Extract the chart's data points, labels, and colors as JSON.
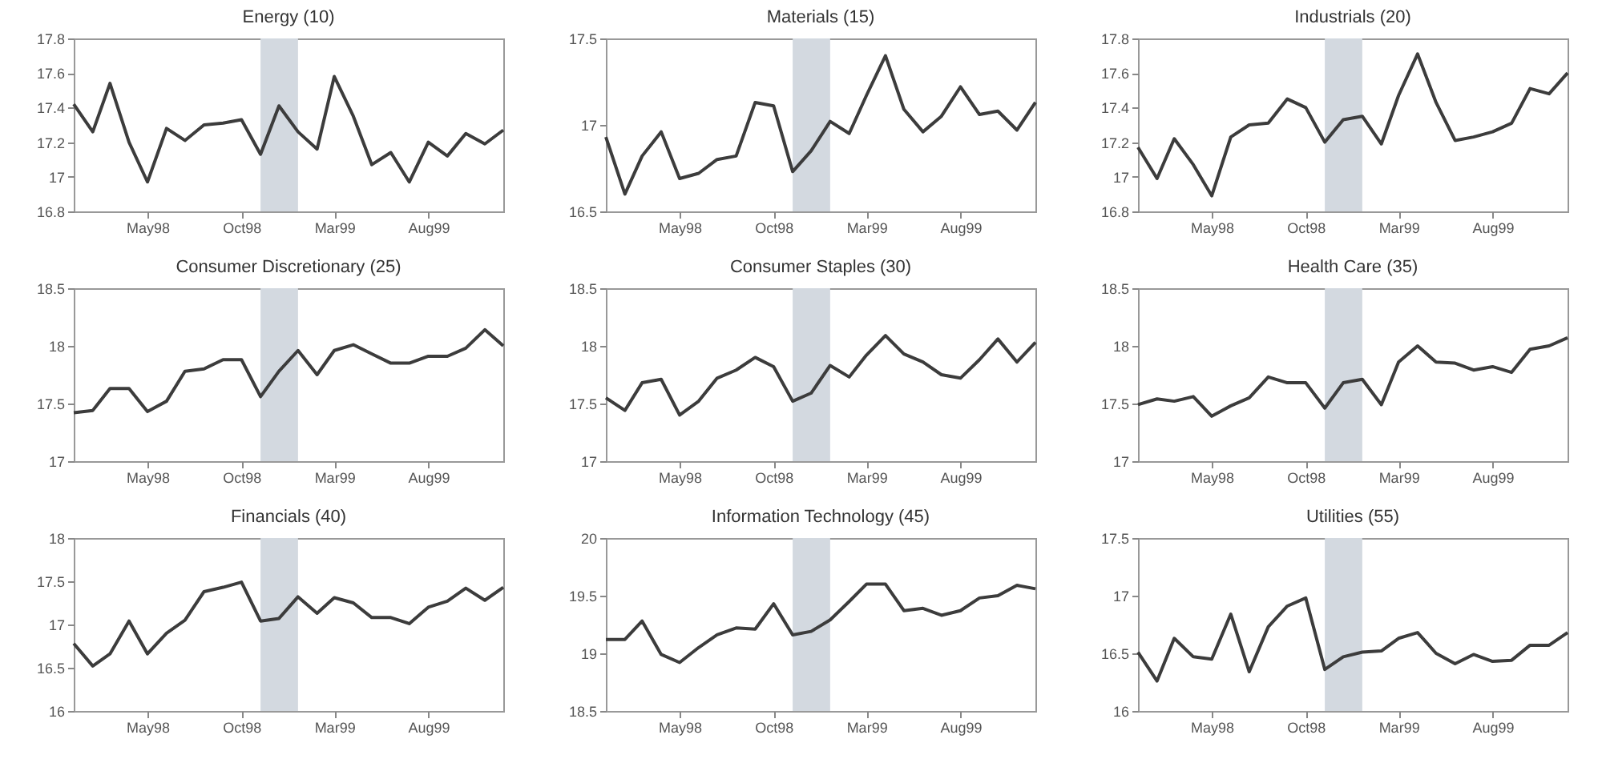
{
  "chart_data": [
    {
      "type": "line",
      "title": "Energy (10)",
      "color": "#3c3c3c",
      "xlim": [
        "1998-01",
        "1999-12"
      ],
      "ylim": [
        16.8,
        17.8
      ],
      "yticks": [
        16.8,
        17,
        17.2,
        17.4,
        17.6,
        17.8
      ],
      "xticks": [
        {
          "value": "1998-05",
          "label": "May98"
        },
        {
          "value": "1998-10",
          "label": "Oct98"
        },
        {
          "value": "1999-03",
          "label": "Mar99"
        },
        {
          "value": "1999-08",
          "label": "Aug99"
        }
      ],
      "bands": [
        {
          "axis": "x",
          "from": "1998-11",
          "to": "1999-01",
          "color": "#d3d9e0"
        }
      ],
      "x": [
        "1998-01",
        "1998-02",
        "1998-03",
        "1998-04",
        "1998-05",
        "1998-06",
        "1998-07",
        "1998-08",
        "1998-09",
        "1998-10",
        "1998-11",
        "1998-12",
        "1999-01",
        "1999-02",
        "1999-03",
        "1999-04",
        "1999-05",
        "1999-06",
        "1999-07",
        "1999-08",
        "1999-09",
        "1999-10",
        "1999-11",
        "1999-12"
      ],
      "values": [
        17.42,
        17.26,
        17.54,
        17.2,
        16.97,
        17.28,
        17.21,
        17.3,
        17.31,
        17.33,
        17.13,
        17.41,
        17.26,
        17.16,
        17.58,
        17.35,
        17.07,
        17.14,
        16.97,
        17.2,
        17.12,
        17.25,
        17.19,
        17.27
      ]
    },
    {
      "type": "line",
      "title": "Materials (15)",
      "color": "#3c3c3c",
      "xlim": [
        "1998-01",
        "1999-12"
      ],
      "ylim": [
        16.5,
        17.5
      ],
      "yticks": [
        16.5,
        17,
        17.5
      ],
      "xticks": [
        {
          "value": "1998-05",
          "label": "May98"
        },
        {
          "value": "1998-10",
          "label": "Oct98"
        },
        {
          "value": "1999-03",
          "label": "Mar99"
        },
        {
          "value": "1999-08",
          "label": "Aug99"
        }
      ],
      "bands": [
        {
          "axis": "x",
          "from": "1998-11",
          "to": "1999-01",
          "color": "#d3d9e0"
        }
      ],
      "x": [
        "1998-01",
        "1998-02",
        "1998-03",
        "1998-04",
        "1998-05",
        "1998-06",
        "1998-07",
        "1998-08",
        "1998-09",
        "1998-10",
        "1998-11",
        "1998-12",
        "1999-01",
        "1999-02",
        "1999-03",
        "1999-04",
        "1999-05",
        "1999-06",
        "1999-07",
        "1999-08",
        "1999-09",
        "1999-10",
        "1999-11",
        "1999-12"
      ],
      "values": [
        16.93,
        16.6,
        16.82,
        16.96,
        16.69,
        16.72,
        16.8,
        16.82,
        17.13,
        17.11,
        16.73,
        16.85,
        17.02,
        16.95,
        17.17,
        17.4,
        17.09,
        16.96,
        17.05,
        17.22,
        17.06,
        17.08,
        16.97,
        17.13
      ]
    },
    {
      "type": "line",
      "title": "Industrials (20)",
      "color": "#3c3c3c",
      "xlim": [
        "1998-01",
        "1999-12"
      ],
      "ylim": [
        16.8,
        17.8
      ],
      "yticks": [
        16.8,
        17,
        17.2,
        17.4,
        17.6,
        17.8
      ],
      "xticks": [
        {
          "value": "1998-05",
          "label": "May98"
        },
        {
          "value": "1998-10",
          "label": "Oct98"
        },
        {
          "value": "1999-03",
          "label": "Mar99"
        },
        {
          "value": "1999-08",
          "label": "Aug99"
        }
      ],
      "bands": [
        {
          "axis": "x",
          "from": "1998-11",
          "to": "1999-01",
          "color": "#d3d9e0"
        }
      ],
      "x": [
        "1998-01",
        "1998-02",
        "1998-03",
        "1998-04",
        "1998-05",
        "1998-06",
        "1998-07",
        "1998-08",
        "1998-09",
        "1998-10",
        "1998-11",
        "1998-12",
        "1999-01",
        "1999-02",
        "1999-03",
        "1999-04",
        "1999-05",
        "1999-06",
        "1999-07",
        "1999-08",
        "1999-09",
        "1999-10",
        "1999-11",
        "1999-12"
      ],
      "values": [
        17.17,
        16.99,
        17.22,
        17.07,
        16.89,
        17.23,
        17.3,
        17.31,
        17.45,
        17.4,
        17.2,
        17.33,
        17.35,
        17.19,
        17.47,
        17.71,
        17.43,
        17.21,
        17.23,
        17.26,
        17.31,
        17.51,
        17.48,
        17.6
      ]
    },
    {
      "type": "line",
      "title": "Consumer Discretionary (25)",
      "color": "#3c3c3c",
      "xlim": [
        "1998-01",
        "1999-12"
      ],
      "ylim": [
        17,
        18.5
      ],
      "yticks": [
        17,
        17.5,
        18,
        18.5
      ],
      "xticks": [
        {
          "value": "1998-05",
          "label": "May98"
        },
        {
          "value": "1998-10",
          "label": "Oct98"
        },
        {
          "value": "1999-03",
          "label": "Mar99"
        },
        {
          "value": "1999-08",
          "label": "Aug99"
        }
      ],
      "bands": [
        {
          "axis": "x",
          "from": "1998-11",
          "to": "1999-01",
          "color": "#d3d9e0"
        }
      ],
      "x": [
        "1998-01",
        "1998-02",
        "1998-03",
        "1998-04",
        "1998-05",
        "1998-06",
        "1998-07",
        "1998-08",
        "1998-09",
        "1998-10",
        "1998-11",
        "1998-12",
        "1999-01",
        "1999-02",
        "1999-03",
        "1999-04",
        "1999-05",
        "1999-06",
        "1999-07",
        "1999-08",
        "1999-09",
        "1999-10",
        "1999-11",
        "1999-12"
      ],
      "values": [
        17.42,
        17.44,
        17.63,
        17.63,
        17.43,
        17.52,
        17.78,
        17.8,
        17.88,
        17.88,
        17.56,
        17.78,
        17.96,
        17.75,
        17.96,
        18.01,
        17.93,
        17.85,
        17.85,
        17.91,
        17.91,
        17.98,
        18.14,
        18.0
      ]
    },
    {
      "type": "line",
      "title": "Consumer Staples (30)",
      "color": "#3c3c3c",
      "xlim": [
        "1998-01",
        "1999-12"
      ],
      "ylim": [
        17,
        18.5
      ],
      "yticks": [
        17,
        17.5,
        18,
        18.5
      ],
      "xticks": [
        {
          "value": "1998-05",
          "label": "May98"
        },
        {
          "value": "1998-10",
          "label": "Oct98"
        },
        {
          "value": "1999-03",
          "label": "Mar99"
        },
        {
          "value": "1999-08",
          "label": "Aug99"
        }
      ],
      "bands": [
        {
          "axis": "x",
          "from": "1998-11",
          "to": "1999-01",
          "color": "#d3d9e0"
        }
      ],
      "x": [
        "1998-01",
        "1998-02",
        "1998-03",
        "1998-04",
        "1998-05",
        "1998-06",
        "1998-07",
        "1998-08",
        "1998-09",
        "1998-10",
        "1998-11",
        "1998-12",
        "1999-01",
        "1999-02",
        "1999-03",
        "1999-04",
        "1999-05",
        "1999-06",
        "1999-07",
        "1999-08",
        "1999-09",
        "1999-10",
        "1999-11",
        "1999-12"
      ],
      "values": [
        17.55,
        17.44,
        17.68,
        17.71,
        17.4,
        17.52,
        17.72,
        17.79,
        17.9,
        17.82,
        17.52,
        17.59,
        17.83,
        17.73,
        17.92,
        18.09,
        17.93,
        17.86,
        17.75,
        17.72,
        17.88,
        18.06,
        17.86,
        18.03
      ]
    },
    {
      "type": "line",
      "title": "Health Care (35)",
      "color": "#3c3c3c",
      "xlim": [
        "1998-01",
        "1999-12"
      ],
      "ylim": [
        17,
        18.5
      ],
      "yticks": [
        17,
        17.5,
        18,
        18.5
      ],
      "xticks": [
        {
          "value": "1998-05",
          "label": "May98"
        },
        {
          "value": "1998-10",
          "label": "Oct98"
        },
        {
          "value": "1999-03",
          "label": "Mar99"
        },
        {
          "value": "1999-08",
          "label": "Aug99"
        }
      ],
      "bands": [
        {
          "axis": "x",
          "from": "1998-11",
          "to": "1999-01",
          "color": "#d3d9e0"
        }
      ],
      "x": [
        "1998-01",
        "1998-02",
        "1998-03",
        "1998-04",
        "1998-05",
        "1998-06",
        "1998-07",
        "1998-08",
        "1998-09",
        "1998-10",
        "1998-11",
        "1998-12",
        "1999-01",
        "1999-02",
        "1999-03",
        "1999-04",
        "1999-05",
        "1999-06",
        "1999-07",
        "1999-08",
        "1999-09",
        "1999-10",
        "1999-11",
        "1999-12"
      ],
      "values": [
        17.49,
        17.54,
        17.52,
        17.56,
        17.39,
        17.48,
        17.55,
        17.73,
        17.68,
        17.68,
        17.46,
        17.68,
        17.71,
        17.49,
        17.86,
        18.0,
        17.86,
        17.85,
        17.79,
        17.82,
        17.77,
        17.97,
        18.0,
        18.07
      ]
    },
    {
      "type": "line",
      "title": "Financials (40)",
      "color": "#3c3c3c",
      "xlim": [
        "1998-01",
        "1999-12"
      ],
      "ylim": [
        16,
        18
      ],
      "yticks": [
        16,
        16.5,
        17,
        17.5,
        18
      ],
      "xticks": [
        {
          "value": "1998-05",
          "label": "May98"
        },
        {
          "value": "1998-10",
          "label": "Oct98"
        },
        {
          "value": "1999-03",
          "label": "Mar99"
        },
        {
          "value": "1999-08",
          "label": "Aug99"
        }
      ],
      "bands": [
        {
          "axis": "x",
          "from": "1998-11",
          "to": "1999-01",
          "color": "#d3d9e0"
        }
      ],
      "x": [
        "1998-01",
        "1998-02",
        "1998-03",
        "1998-04",
        "1998-05",
        "1998-06",
        "1998-07",
        "1998-08",
        "1998-09",
        "1998-10",
        "1998-11",
        "1998-12",
        "1999-01",
        "1999-02",
        "1999-03",
        "1999-04",
        "1999-05",
        "1999-06",
        "1999-07",
        "1999-08",
        "1999-09",
        "1999-10",
        "1999-11",
        "1999-12"
      ],
      "values": [
        16.78,
        16.52,
        16.66,
        17.04,
        16.66,
        16.9,
        17.05,
        17.38,
        17.43,
        17.49,
        17.04,
        17.07,
        17.32,
        17.13,
        17.31,
        17.25,
        17.08,
        17.08,
        17.01,
        17.2,
        17.27,
        17.42,
        17.28,
        17.43
      ]
    },
    {
      "type": "line",
      "title": "Information Technology (45)",
      "color": "#3c3c3c",
      "xlim": [
        "1998-01",
        "1999-12"
      ],
      "ylim": [
        18.5,
        20
      ],
      "yticks": [
        18.5,
        19,
        19.5,
        20
      ],
      "xticks": [
        {
          "value": "1998-05",
          "label": "May98"
        },
        {
          "value": "1998-10",
          "label": "Oct98"
        },
        {
          "value": "1999-03",
          "label": "Mar99"
        },
        {
          "value": "1999-08",
          "label": "Aug99"
        }
      ],
      "bands": [
        {
          "axis": "x",
          "from": "1998-11",
          "to": "1999-01",
          "color": "#d3d9e0"
        }
      ],
      "x": [
        "1998-01",
        "1998-02",
        "1998-03",
        "1998-04",
        "1998-05",
        "1998-06",
        "1998-07",
        "1998-08",
        "1998-09",
        "1998-10",
        "1998-11",
        "1998-12",
        "1999-01",
        "1999-02",
        "1999-03",
        "1999-04",
        "1999-05",
        "1999-06",
        "1999-07",
        "1999-08",
        "1999-09",
        "1999-10",
        "1999-11",
        "1999-12"
      ],
      "values": [
        19.12,
        19.12,
        19.28,
        18.99,
        18.92,
        19.05,
        19.16,
        19.22,
        19.21,
        19.43,
        19.16,
        19.19,
        19.29,
        19.45,
        19.6,
        19.6,
        19.37,
        19.39,
        19.33,
        19.37,
        19.48,
        19.5,
        19.59,
        19.56
      ]
    },
    {
      "type": "line",
      "title": "Utilities (55)",
      "color": "#3c3c3c",
      "xlim": [
        "1998-01",
        "1999-12"
      ],
      "ylim": [
        16,
        17.5
      ],
      "yticks": [
        16,
        16.5,
        17,
        17.5
      ],
      "xticks": [
        {
          "value": "1998-05",
          "label": "May98"
        },
        {
          "value": "1998-10",
          "label": "Oct98"
        },
        {
          "value": "1999-03",
          "label": "Mar99"
        },
        {
          "value": "1999-08",
          "label": "Aug99"
        }
      ],
      "bands": [
        {
          "axis": "x",
          "from": "1998-11",
          "to": "1999-01",
          "color": "#d3d9e0"
        }
      ],
      "x": [
        "1998-01",
        "1998-02",
        "1998-03",
        "1998-04",
        "1998-05",
        "1998-06",
        "1998-07",
        "1998-08",
        "1998-09",
        "1998-10",
        "1998-11",
        "1998-12",
        "1999-01",
        "1999-02",
        "1999-03",
        "1999-04",
        "1999-05",
        "1999-06",
        "1999-07",
        "1999-08",
        "1999-09",
        "1999-10",
        "1999-11",
        "1999-12"
      ],
      "values": [
        16.51,
        16.26,
        16.63,
        16.47,
        16.45,
        16.84,
        16.34,
        16.73,
        16.91,
        16.98,
        16.36,
        16.47,
        16.51,
        16.52,
        16.63,
        16.68,
        16.5,
        16.41,
        16.49,
        16.43,
        16.44,
        16.57,
        16.57,
        16.68
      ]
    }
  ]
}
